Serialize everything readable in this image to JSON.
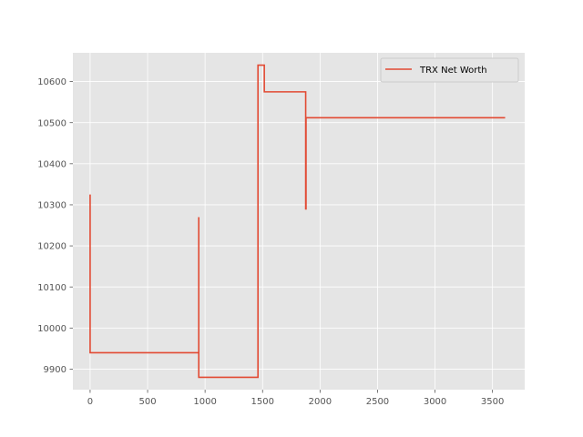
{
  "chart_data": {
    "type": "line",
    "title": "",
    "xlabel": "",
    "ylabel": "",
    "xlim": [
      -150,
      3780
    ],
    "ylim": [
      9850,
      10670
    ],
    "x_ticks": [
      0,
      500,
      1000,
      1500,
      2000,
      2500,
      3000,
      3500
    ],
    "y_ticks": [
      9900,
      10000,
      10100,
      10200,
      10300,
      10400,
      10500,
      10600
    ],
    "grid": true,
    "legend_position": "top-right",
    "colors": {
      "background": "#E5E5E5",
      "grid": "#FFFFFF",
      "line": "#E24A33"
    },
    "series": [
      {
        "name": "TRX Net Worth",
        "color": "#E24A33",
        "x": [
          0,
          0,
          0,
          0,
          945,
          945,
          945,
          945,
          1460,
          1460,
          1515,
          1515,
          1875,
          1875,
          1878,
          1878,
          3610
        ],
        "y": [
          10000,
          10325,
          9940,
          9940,
          9940,
          10270,
          9880,
          9880,
          9880,
          10640,
          10640,
          10575,
          10575,
          10290,
          10290,
          10512,
          10512
        ]
      }
    ]
  }
}
